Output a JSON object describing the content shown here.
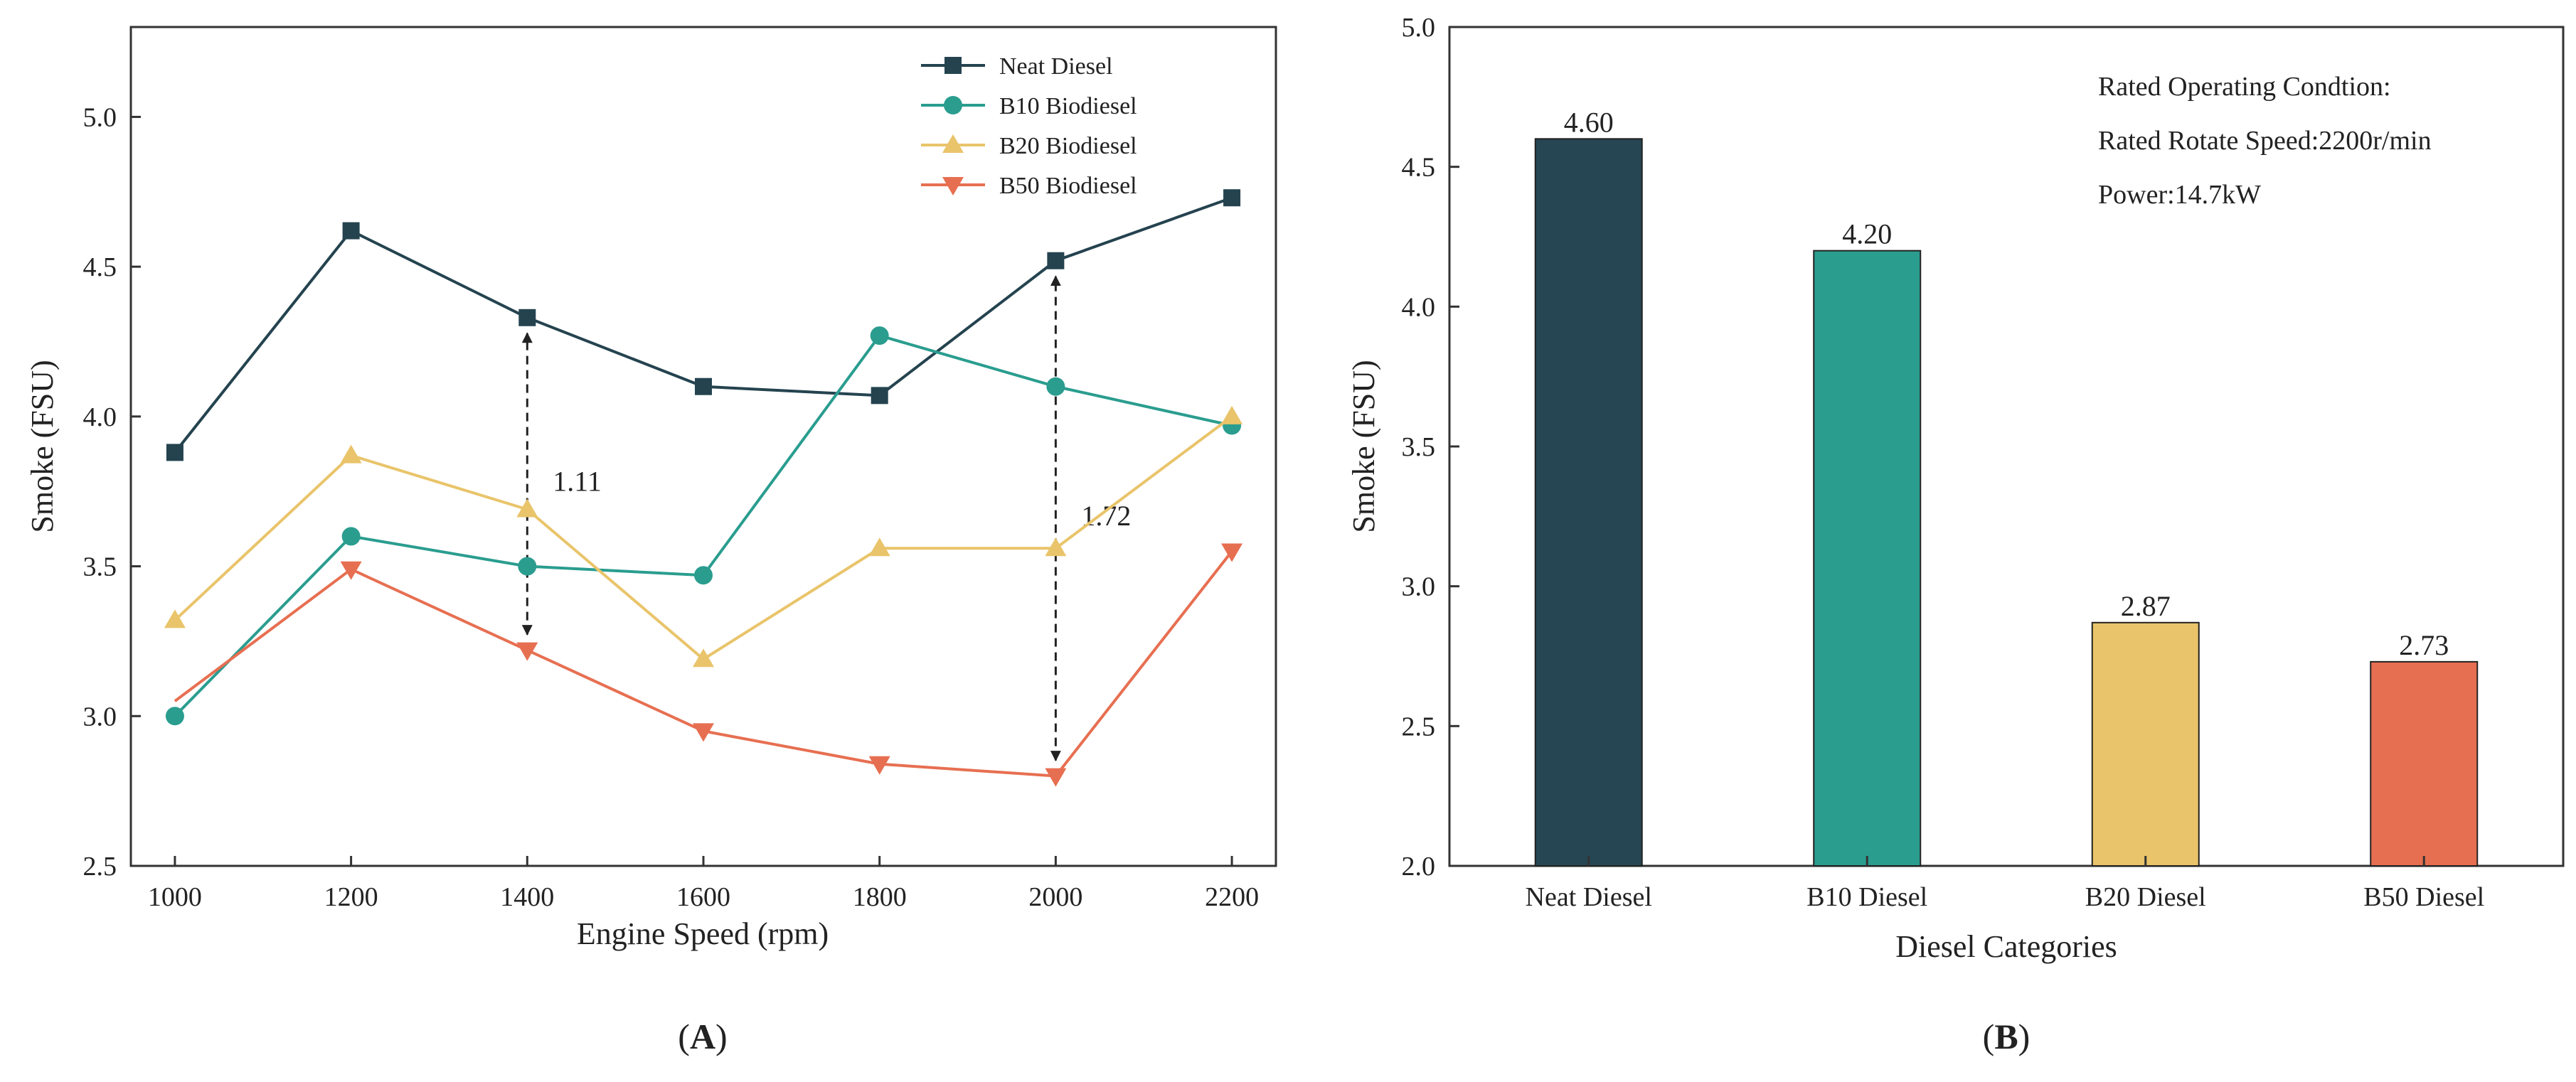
{
  "chart_data": [
    {
      "panel": "A",
      "type": "line",
      "xlabel": "Engine Speed (rpm)",
      "ylabel": "Smoke (FSU)",
      "x": [
        1000,
        1200,
        1400,
        1600,
        1800,
        2000,
        2200
      ],
      "xlim": [
        950,
        2250
      ],
      "ylim": [
        2.5,
        5.3
      ],
      "xticks": [
        "1000",
        "1200",
        "1400",
        "1600",
        "1800",
        "2000",
        "2200"
      ],
      "yticks": [
        "2.5",
        "3.0",
        "3.5",
        "4.0",
        "4.5",
        "5.0"
      ],
      "legend_position": "top-right",
      "series": [
        {
          "name": "Neat Diesel",
          "marker": "square",
          "color": "#24434f",
          "values": [
            3.88,
            4.62,
            4.33,
            4.1,
            4.07,
            4.52,
            4.73
          ]
        },
        {
          "name": "B10 Biodiesel",
          "marker": "circle",
          "color": "#2a9d8f",
          "values": [
            3.0,
            3.6,
            3.5,
            3.47,
            4.27,
            4.1,
            3.97
          ]
        },
        {
          "name": "B20 Biodiesel",
          "marker": "triangle-up",
          "color": "#e9c46a",
          "values": [
            3.32,
            3.87,
            3.69,
            3.19,
            3.56,
            3.56,
            4.0
          ]
        },
        {
          "name": "B50 Biodiesel",
          "marker": "triangle-down",
          "color": "#e76f51",
          "values": [
            3.05,
            3.49,
            3.22,
            2.95,
            2.84,
            2.8,
            3.55
          ]
        }
      ],
      "annotations": [
        {
          "label": "1.11",
          "x": 1400,
          "y_from": 3.22,
          "y_to": 4.33
        },
        {
          "label": "1.72",
          "x": 2000,
          "y_from": 2.8,
          "y_to": 4.52
        }
      ],
      "caption": "A"
    },
    {
      "panel": "B",
      "type": "bar",
      "xlabel": "Diesel Categories",
      "ylabel": "Smoke (FSU)",
      "categories": [
        "Neat Diesel",
        "B10 Diesel",
        "B20 Diesel",
        "B50 Diesel"
      ],
      "values": [
        4.6,
        4.2,
        2.87,
        2.73
      ],
      "value_labels": [
        "4.60",
        "4.20",
        "2.87",
        "2.73"
      ],
      "colors": [
        "#264653",
        "#2a9d8f",
        "#e9c46a",
        "#e76f51"
      ],
      "ylim": [
        2.0,
        5.0
      ],
      "yticks": [
        "2.0",
        "2.5",
        "3.0",
        "3.5",
        "4.0",
        "4.5",
        "5.0"
      ],
      "notes": [
        "Rated Operating Condtion:",
        "Rated Rotate Speed:2200r/min",
        "Power:14.7kW"
      ],
      "caption": "B"
    }
  ]
}
